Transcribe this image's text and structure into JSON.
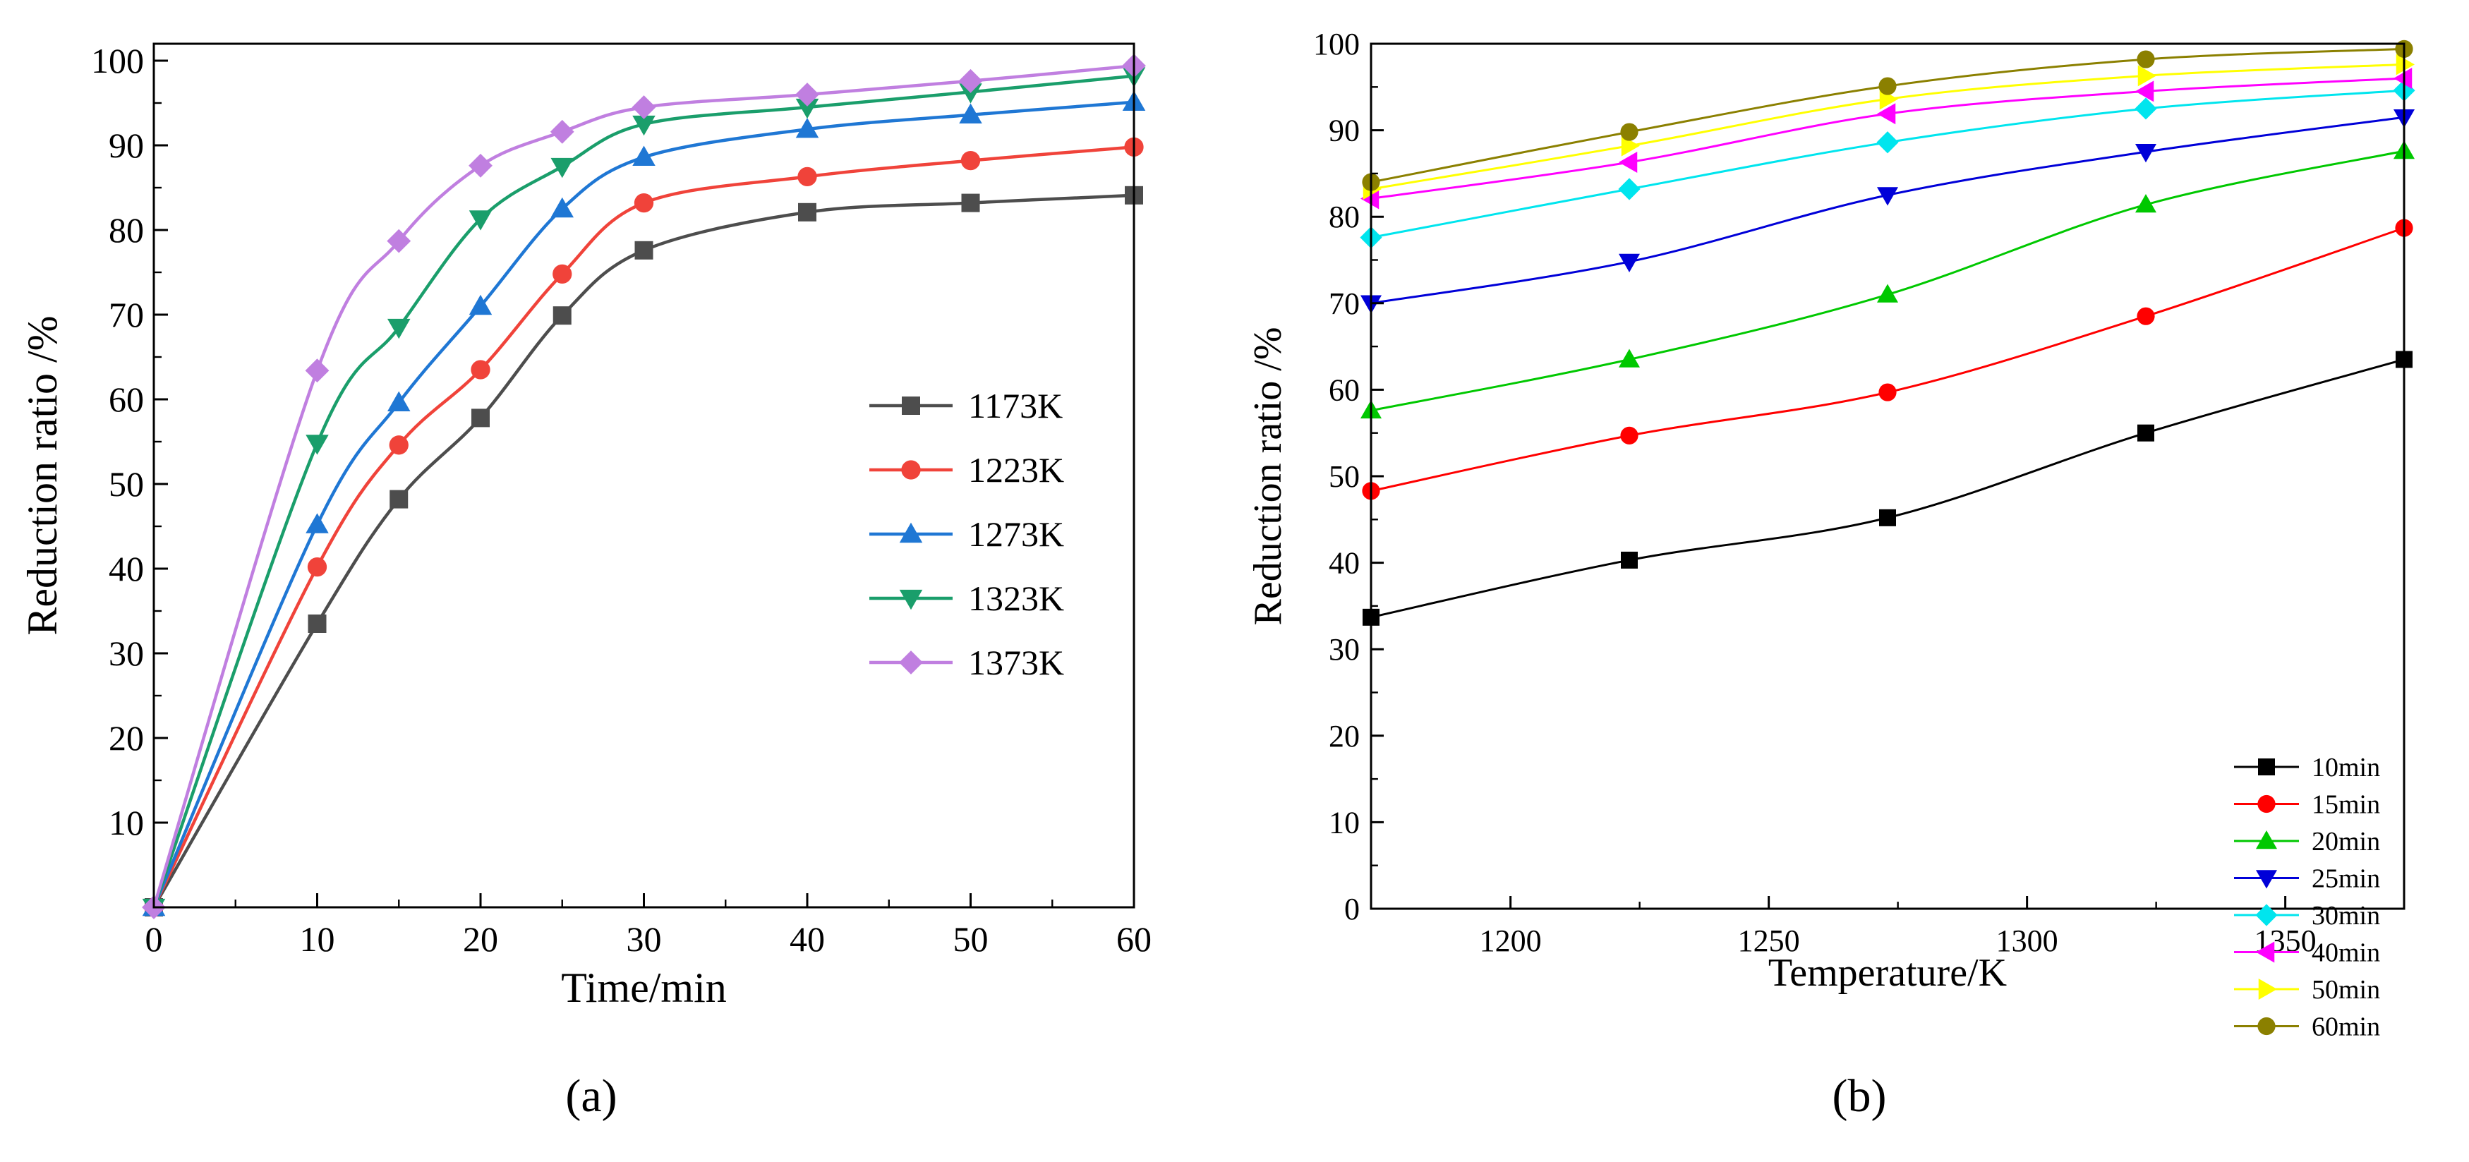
{
  "chart_data": [
    {
      "type": "line",
      "panel_label": "(a)",
      "xlabel": "Time/min",
      "ylabel": "Reduction ratio /%",
      "xlim": [
        0,
        60
      ],
      "ylim": [
        0,
        102
      ],
      "x_ticks": [
        0,
        10,
        20,
        30,
        40,
        50,
        60
      ],
      "y_ticks": [
        10,
        20,
        30,
        40,
        50,
        60,
        70,
        80,
        90,
        100
      ],
      "grid": false,
      "legend_position": "center-right",
      "x": [
        0,
        10,
        15,
        20,
        25,
        30,
        40,
        50,
        60
      ],
      "series": [
        {
          "name": "1173K",
          "color": "#4d4d4d",
          "marker": "square",
          "values": [
            0,
            33.5,
            48.2,
            57.8,
            69.9,
            77.6,
            82.1,
            83.2,
            84.1
          ]
        },
        {
          "name": "1223K",
          "color": "#f0433a",
          "marker": "circle",
          "values": [
            0,
            40.2,
            54.6,
            63.5,
            74.8,
            83.2,
            86.3,
            88.2,
            89.8
          ]
        },
        {
          "name": "1273K",
          "color": "#1f77d4",
          "marker": "triangle-up",
          "values": [
            0,
            45.2,
            59.6,
            71.0,
            82.5,
            88.6,
            91.9,
            93.6,
            95.1
          ]
        },
        {
          "name": "1323K",
          "color": "#1a9e6b",
          "marker": "triangle-down",
          "values": [
            0,
            54.8,
            68.5,
            81.3,
            87.5,
            92.5,
            94.5,
            96.3,
            98.2
          ]
        },
        {
          "name": "1373K",
          "color": "#c07fe0",
          "marker": "diamond",
          "values": [
            0,
            63.4,
            78.7,
            87.6,
            91.6,
            94.5,
            96.0,
            97.6,
            99.4
          ]
        }
      ]
    },
    {
      "type": "line",
      "panel_label": "(b)",
      "xlabel": "Temperature/K",
      "ylabel": "Reduction ratio /%",
      "xlim": [
        1173,
        1373
      ],
      "ylim": [
        0,
        100
      ],
      "x_ticks": [
        1200,
        1250,
        1300,
        1350
      ],
      "y_ticks": [
        0,
        10,
        20,
        30,
        40,
        50,
        60,
        70,
        80,
        90,
        100
      ],
      "grid": false,
      "legend_position": "bottom-right",
      "x": [
        1173,
        1223,
        1273,
        1323,
        1373
      ],
      "series": [
        {
          "name": "10min",
          "color": "#000000",
          "marker": "square",
          "values": [
            33.7,
            40.3,
            45.2,
            55.0,
            63.5
          ]
        },
        {
          "name": "15min",
          "color": "#ff0000",
          "marker": "circle",
          "values": [
            48.3,
            54.7,
            59.7,
            68.5,
            78.7
          ]
        },
        {
          "name": "20min",
          "color": "#00c800",
          "marker": "triangle-up",
          "values": [
            57.6,
            63.5,
            71.0,
            81.4,
            87.6
          ]
        },
        {
          "name": "25min",
          "color": "#0000d8",
          "marker": "triangle-down",
          "values": [
            70.0,
            74.8,
            82.5,
            87.5,
            91.5
          ]
        },
        {
          "name": "30min",
          "color": "#00e5ee",
          "marker": "diamond",
          "values": [
            77.6,
            83.2,
            88.6,
            92.5,
            94.6
          ]
        },
        {
          "name": "40min",
          "color": "#ff00ff",
          "marker": "triangle-left",
          "values": [
            82.1,
            86.3,
            91.9,
            94.5,
            96.0
          ]
        },
        {
          "name": "50min",
          "color": "#ffff00",
          "marker": "triangle-right",
          "values": [
            83.2,
            88.2,
            93.6,
            96.3,
            97.6
          ]
        },
        {
          "name": "60min",
          "color": "#8b8000",
          "marker": "circle",
          "values": [
            84.0,
            89.8,
            95.1,
            98.2,
            99.4
          ]
        }
      ]
    }
  ]
}
